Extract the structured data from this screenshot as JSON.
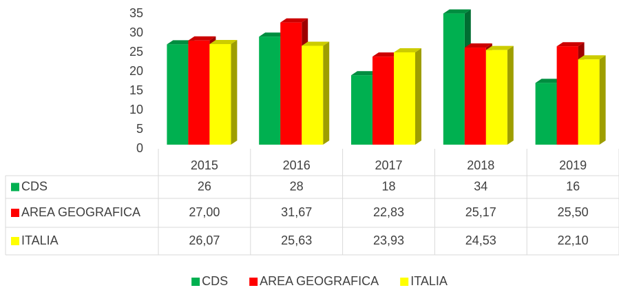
{
  "chart_data": {
    "type": "bar",
    "categories": [
      "2015",
      "2016",
      "2017",
      "2018",
      "2019"
    ],
    "series": [
      {
        "name": "CDS",
        "color": "#00b050",
        "values": [
          26,
          28,
          18,
          34,
          16
        ]
      },
      {
        "name": "AREA GEOGRAFICA",
        "color": "#ff0000",
        "values": [
          27.0,
          31.67,
          22.83,
          25.17,
          25.5
        ],
        "value_labels": [
          "27,00",
          "31,67",
          "22,83",
          "25,17",
          "25,50"
        ]
      },
      {
        "name": "ITALIA",
        "color": "#ffff00",
        "values": [
          26.07,
          25.63,
          23.93,
          24.53,
          22.1
        ],
        "value_labels": [
          "26,07",
          "25,63",
          "23,93",
          "24,53",
          "22,10"
        ]
      }
    ],
    "ylim": [
      0,
      35
    ],
    "yticks": [
      0,
      5,
      10,
      15,
      20,
      25,
      30,
      35
    ],
    "legend": "bottom"
  }
}
